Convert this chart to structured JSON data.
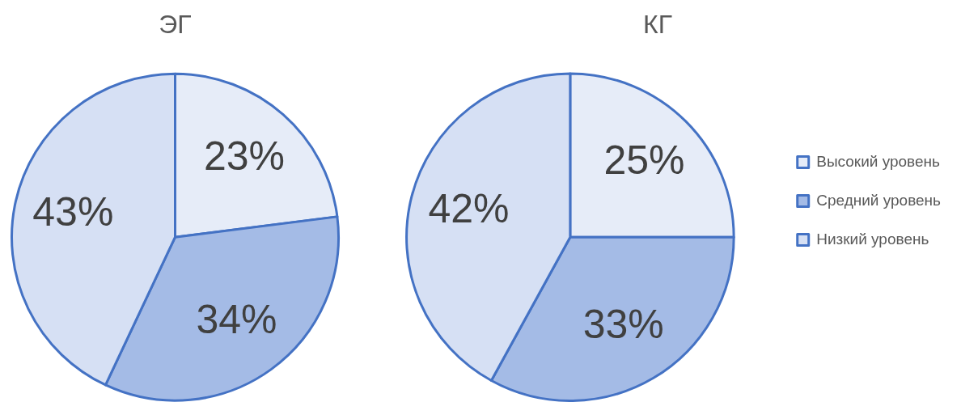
{
  "chart_data": [
    {
      "type": "pie",
      "title": "ЭГ",
      "values": [
        23,
        34,
        43
      ],
      "colors": [
        "#e6ecf8",
        "#a4bbe6",
        "#d6e0f4"
      ],
      "value_labels": [
        "23%",
        "34%",
        "43%"
      ]
    },
    {
      "type": "pie",
      "title": "КГ",
      "categories": [
        "Высокий уровень",
        "Средний уровень",
        "Низкий уровень"
      ],
      "values": [
        25,
        33,
        42
      ],
      "colors": [
        "#e6ecf8",
        "#a4bbe6",
        "#d6e0f4"
      ],
      "value_labels": [
        "25%",
        "33%",
        "42%"
      ],
      "legend": "right"
    }
  ]
}
